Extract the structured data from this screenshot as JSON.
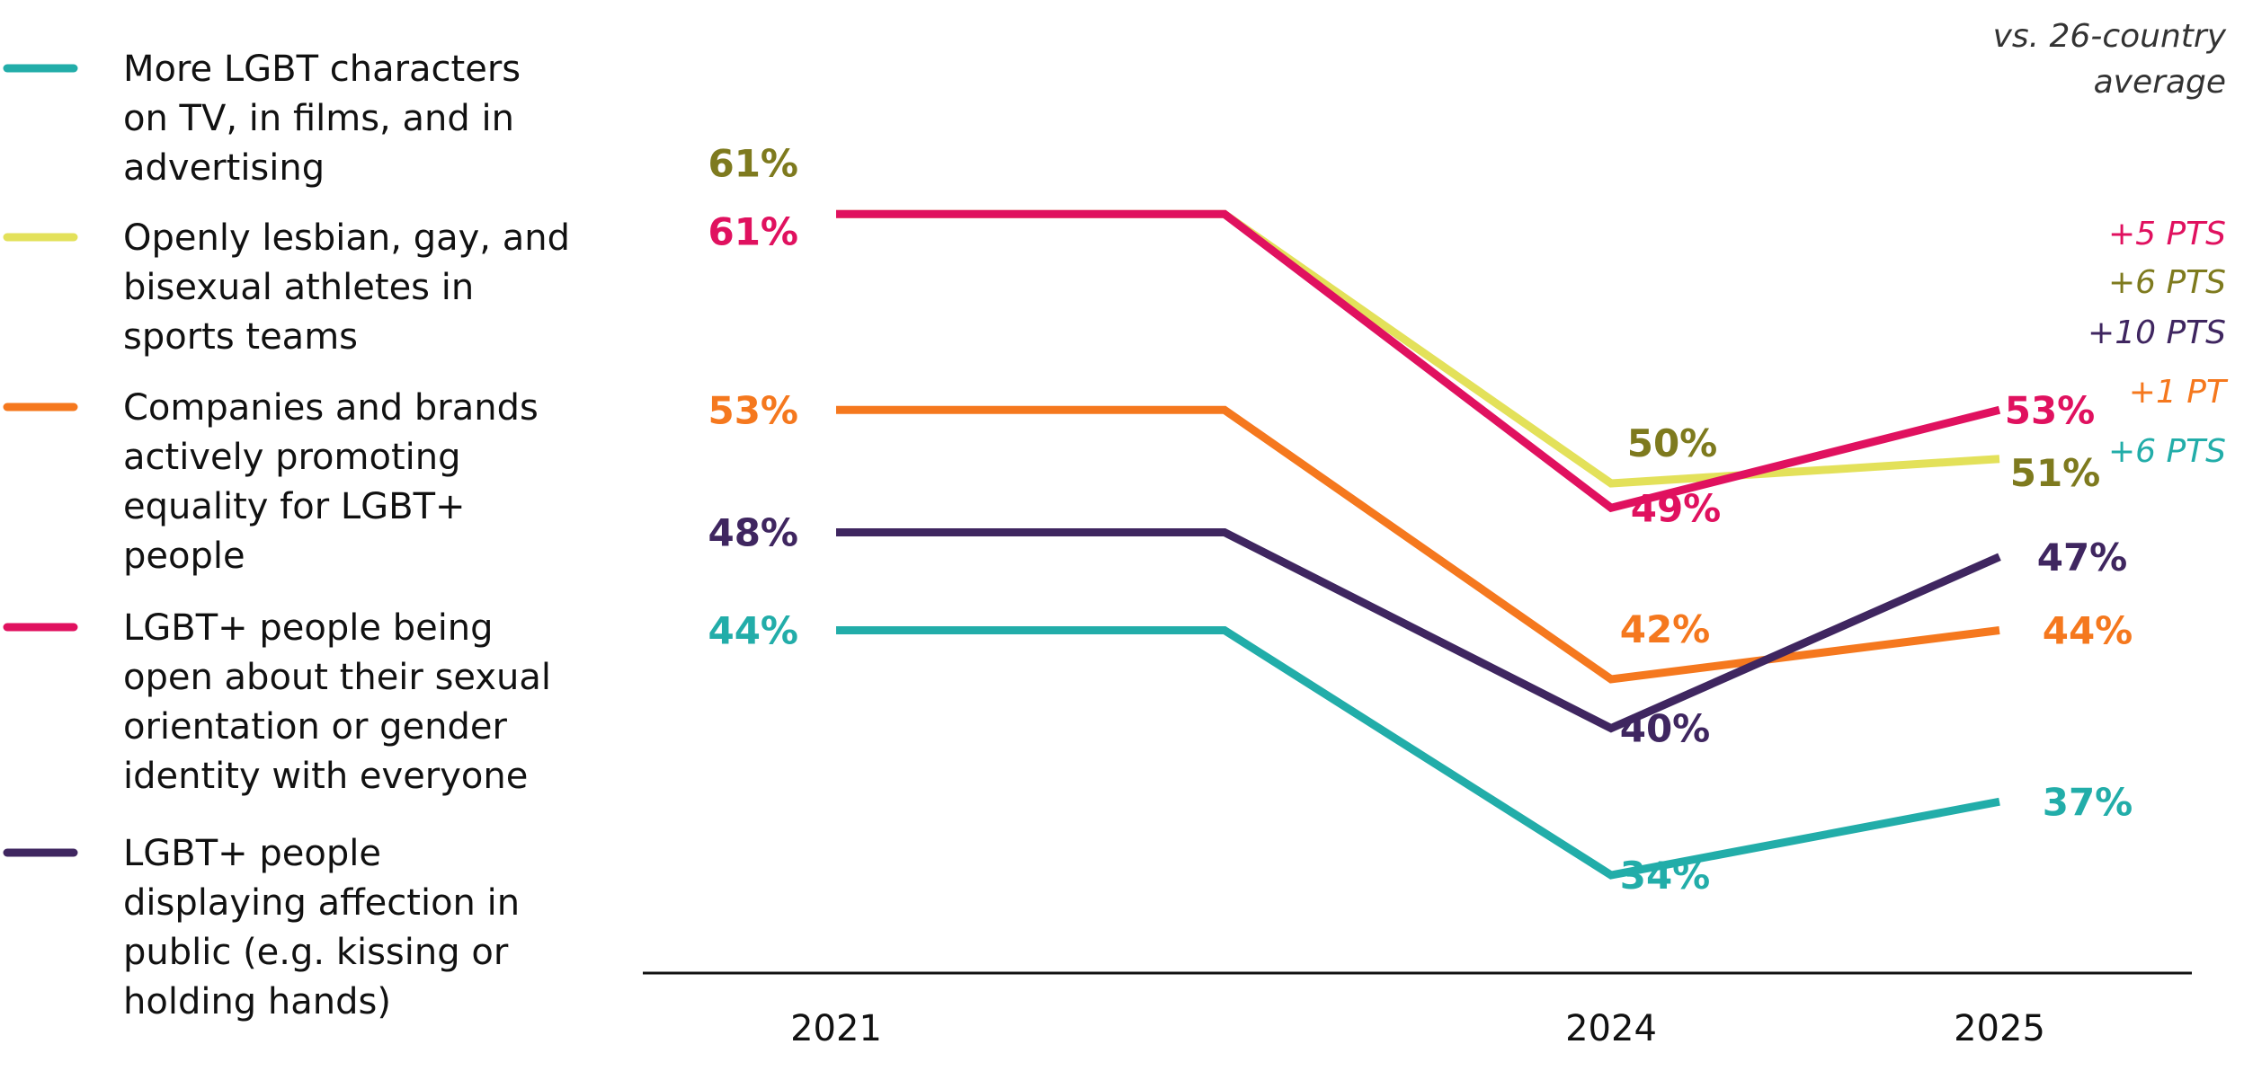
{
  "chart_data": {
    "type": "line",
    "title": "",
    "xlabel": "",
    "ylabel": "",
    "note": [
      "vs. 26-country",
      "average"
    ],
    "x": [
      "2021",
      "2024",
      "2025"
    ],
    "ylim": [
      30,
      65
    ],
    "grid": false,
    "legend_position": "left",
    "series": [
      {
        "name": "More LGBT characters on TV, in films, and in advertising",
        "name_lines": [
          "More LGBT characters",
          "on TV, in films, and in",
          "advertising"
        ],
        "color": "#22ADA9",
        "label_color": "#22ADA9",
        "values": [
          44,
          34,
          37
        ],
        "labels": [
          "44%",
          "34%",
          "37%"
        ],
        "change": "+6 PTS"
      },
      {
        "name": "Openly lesbian, gay, and bisexual athletes in sports teams",
        "name_lines": [
          "Openly lesbian, gay, and",
          "bisexual athletes in",
          "sports teams"
        ],
        "color": "#E3E15A",
        "label_color": "#7E7A1E",
        "values": [
          61,
          50,
          51
        ],
        "labels": [
          "61%",
          "50%",
          "51%"
        ],
        "change": "+6 PTS"
      },
      {
        "name": "Companies and brands actively promoting equality for LGBT+ people",
        "name_lines": [
          "Companies and brands",
          "actively promoting",
          "equality for LGBT+",
          "people"
        ],
        "color": "#F5781E",
        "label_color": "#F5781E",
        "values": [
          53,
          42,
          44
        ],
        "labels": [
          "53%",
          "42%",
          "44%"
        ],
        "change": "+1 PT"
      },
      {
        "name": "LGBT+ people being open about their sexual orientation or gender identity with everyone",
        "name_lines": [
          "LGBT+ people being",
          "open about their sexual",
          "orientation or gender",
          "identity with everyone"
        ],
        "color": "#E0115F",
        "label_color": "#E0115F",
        "values": [
          61,
          49,
          53
        ],
        "labels": [
          "61%",
          "49%",
          "53%"
        ],
        "change": "+5 PTS"
      },
      {
        "name": "LGBT+ people displaying affection in public (e.g. kissing or holding hands)",
        "name_lines": [
          "LGBT+ people",
          "displaying affection in",
          "public (e.g. kissing or",
          "holding hands)"
        ],
        "color": "#3F2660",
        "label_color": "#3F2660",
        "values": [
          48,
          40,
          47
        ],
        "labels": [
          "48%",
          "40%",
          "47%"
        ],
        "change": "+10 PTS"
      }
    ]
  }
}
